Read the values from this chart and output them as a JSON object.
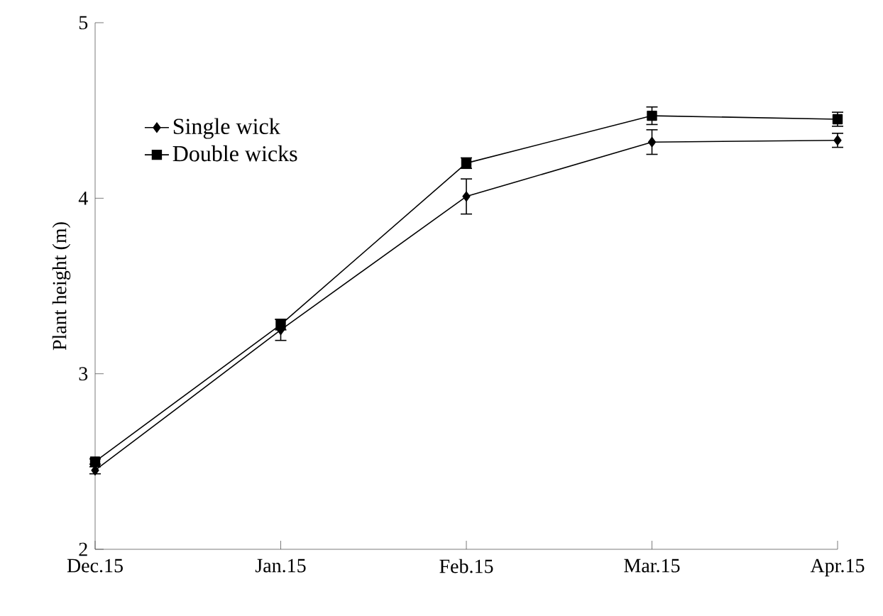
{
  "chart_data": {
    "type": "line",
    "ylabel": "Plant height (m)",
    "categories": [
      "Dec.15",
      "Jan.15",
      "Feb.15",
      "Mar.15",
      "Apr.15"
    ],
    "series": [
      {
        "name": "Single wick",
        "color": "#000000",
        "marker": "diamond",
        "values": [
          2.45,
          3.25,
          4.01,
          4.32,
          4.33
        ],
        "errors": [
          0.02,
          0.06,
          0.1,
          0.07,
          0.04
        ]
      },
      {
        "name": "Double wicks",
        "color": "#000000",
        "marker": "square",
        "values": [
          2.5,
          3.28,
          4.2,
          4.47,
          4.45
        ],
        "errors": [
          0.015,
          0.03,
          0.03,
          0.05,
          0.04
        ]
      }
    ],
    "ylim": [
      2,
      5
    ],
    "yticks": [
      2,
      3,
      4,
      5
    ],
    "legend": "top left",
    "grid": false,
    "line_style": "solid"
  }
}
